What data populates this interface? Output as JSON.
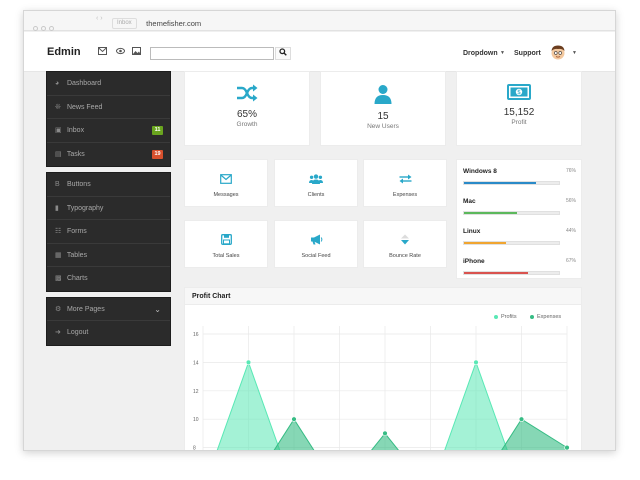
{
  "browser": {
    "tab_hint": "Inbox",
    "url": "themefisher.com"
  },
  "topnav": {
    "brand": "Edmin",
    "search_value": "",
    "dropdown_label": "Dropdown",
    "support_label": "Support"
  },
  "sidebar": {
    "group1": [
      {
        "label": "Dashboard",
        "icon": "dashboard-icon"
      },
      {
        "label": "News Feed",
        "icon": "megaphone-icon"
      },
      {
        "label": "Inbox",
        "icon": "inbox-icon",
        "badge": "11",
        "badge_color": "#6aa51f"
      },
      {
        "label": "Tasks",
        "icon": "tasks-icon",
        "badge": "19",
        "badge_color": "#d8502d"
      }
    ],
    "group2": [
      {
        "label": "Buttons",
        "icon": "bold-icon"
      },
      {
        "label": "Typography",
        "icon": "book-icon"
      },
      {
        "label": "Forms",
        "icon": "paste-icon"
      },
      {
        "label": "Tables",
        "icon": "table-icon"
      },
      {
        "label": "Charts",
        "icon": "chart-icon"
      }
    ],
    "group3": [
      {
        "label": "More Pages",
        "icon": "cog-icon"
      },
      {
        "label": "Logout",
        "icon": "signout-icon"
      }
    ]
  },
  "stats": [
    {
      "value": "65%",
      "label": "Growth",
      "icon": "shuffle-icon"
    },
    {
      "value": "15",
      "label": "New Users",
      "icon": "user-icon"
    },
    {
      "value": "15,152",
      "label": "Profit",
      "icon": "money-icon"
    }
  ],
  "tiles": [
    {
      "label": "Messages",
      "icon": "envelope-icon"
    },
    {
      "label": "Clients",
      "icon": "group-icon"
    },
    {
      "label": "Expenses",
      "icon": "exchange-icon"
    },
    {
      "label": "Total Sales",
      "icon": "save-icon"
    },
    {
      "label": "Social Feed",
      "icon": "bullhorn-icon"
    },
    {
      "label": "Bounce Rate",
      "icon": "sort-down-icon"
    }
  ],
  "os_stats": [
    {
      "name": "Windows 8",
      "percent_label": "76%",
      "value": 76,
      "color": "#2a8ac8"
    },
    {
      "name": "Mac",
      "percent_label": "56%",
      "value": 56,
      "color": "#5cb85c"
    },
    {
      "name": "Linux",
      "percent_label": "44%",
      "value": 44,
      "color": "#f0a530"
    },
    {
      "name": "iPhone",
      "percent_label": "67%",
      "value": 67,
      "color": "#d9534f"
    }
  ],
  "chart_title": "Profit Chart",
  "chart_data": {
    "type": "area",
    "title": "Profit Chart",
    "xlabel": "",
    "ylabel": "",
    "ylim": [
      6,
      16
    ],
    "yticks": [
      "16",
      "14",
      "12",
      "10",
      "8"
    ],
    "x": [
      0,
      1,
      2,
      3,
      4,
      5,
      6,
      7,
      8
    ],
    "grid": true,
    "legend": "top-right",
    "series": [
      {
        "name": "Profits",
        "color": "#59e8b5",
        "values": [
          5,
          14,
          5,
          5,
          5,
          5,
          14,
          5,
          5
        ]
      },
      {
        "name": "Expenses",
        "color": "#36bc84",
        "values": [
          5,
          5,
          10,
          5,
          9,
          5,
          5,
          10,
          8
        ]
      }
    ]
  }
}
